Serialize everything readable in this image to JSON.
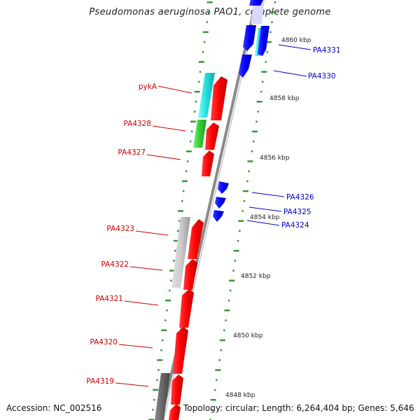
{
  "title": "Pseudomonas aeruginosa PAO1, complete genome",
  "footer": {
    "accession": "Accession: NC_002516",
    "info": "Topology: circular; Length: 6,264,404 bp; Genes: 5,646"
  },
  "colors": {
    "reverse_label": "#cc0000",
    "forward_label": "#0000cc",
    "tick": "#339933",
    "backbone": "#888888"
  },
  "scale_labels": [
    "4860 kbp",
    "4858 kbp",
    "4856 kbp",
    "4854 kbp",
    "4852 kbp",
    "4850 kbp",
    "4848 kbp"
  ],
  "reverse_genes": [
    "pykA",
    "PA4328",
    "PA4327",
    "PA4323",
    "PA4322",
    "PA4321",
    "PA4320",
    "PA4319"
  ],
  "forward_genes": [
    "PA4331",
    "PA4330",
    "PA4326",
    "PA4325",
    "PA4324"
  ]
}
